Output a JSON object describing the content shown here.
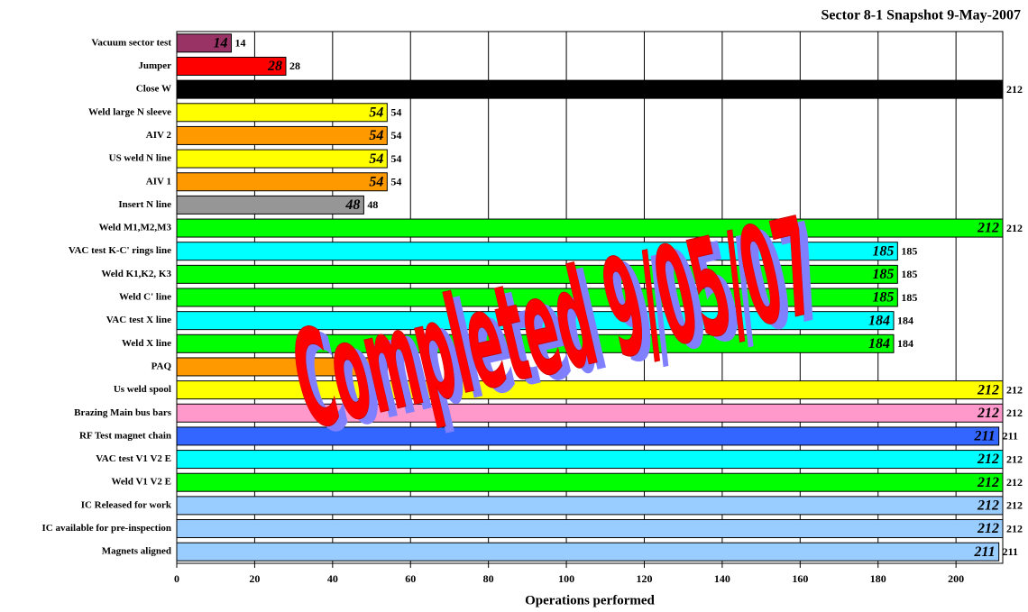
{
  "chart_data": {
    "type": "bar",
    "orientation": "horizontal",
    "title": "Sector 8-1 Snapshot 9-May-2007",
    "xlabel": "Operations performed",
    "annotation": "Completed 9/05/07",
    "categories": [
      "Vacuum sector test",
      "Jumper",
      "Close W",
      "Weld large N sleeve",
      "AIV 2",
      "US weld N line",
      "AIV 1",
      "Insert N line",
      "Weld M1,M2,M3",
      "VAC test K-C' rings line",
      "Weld K1,K2, K3",
      "Weld C' line",
      "VAC test X line",
      "Weld X line",
      "PAQ",
      "Us weld spool",
      "Brazing Main bus bars",
      "RF Test magnet chain",
      "VAC test V1 V2 E",
      "Weld V1 V2 E",
      "IC Released for work",
      "IC available for pre-inspection",
      "Magnets aligned"
    ],
    "values": [
      14,
      28,
      212,
      54,
      54,
      54,
      54,
      48,
      212,
      185,
      185,
      185,
      184,
      184,
      54,
      212,
      212,
      211,
      212,
      212,
      212,
      212,
      211
    ],
    "colors": [
      "#993366",
      "#ff0000",
      "#000000",
      "#ffff00",
      "#ff9900",
      "#ffff00",
      "#ff9900",
      "#969696",
      "#00ff00",
      "#00ffff",
      "#00ff00",
      "#00ff00",
      "#00ffff",
      "#00ff00",
      "#ff9900",
      "#ffff00",
      "#ff99cc",
      "#3366ff",
      "#00ffff",
      "#00ff00",
      "#99ccff",
      "#99ccff",
      "#99ccff"
    ],
    "xlim": [
      0,
      212
    ],
    "xticks": [
      0,
      20,
      40,
      60,
      80,
      100,
      120,
      140,
      160,
      180,
      200
    ],
    "grid": true
  }
}
